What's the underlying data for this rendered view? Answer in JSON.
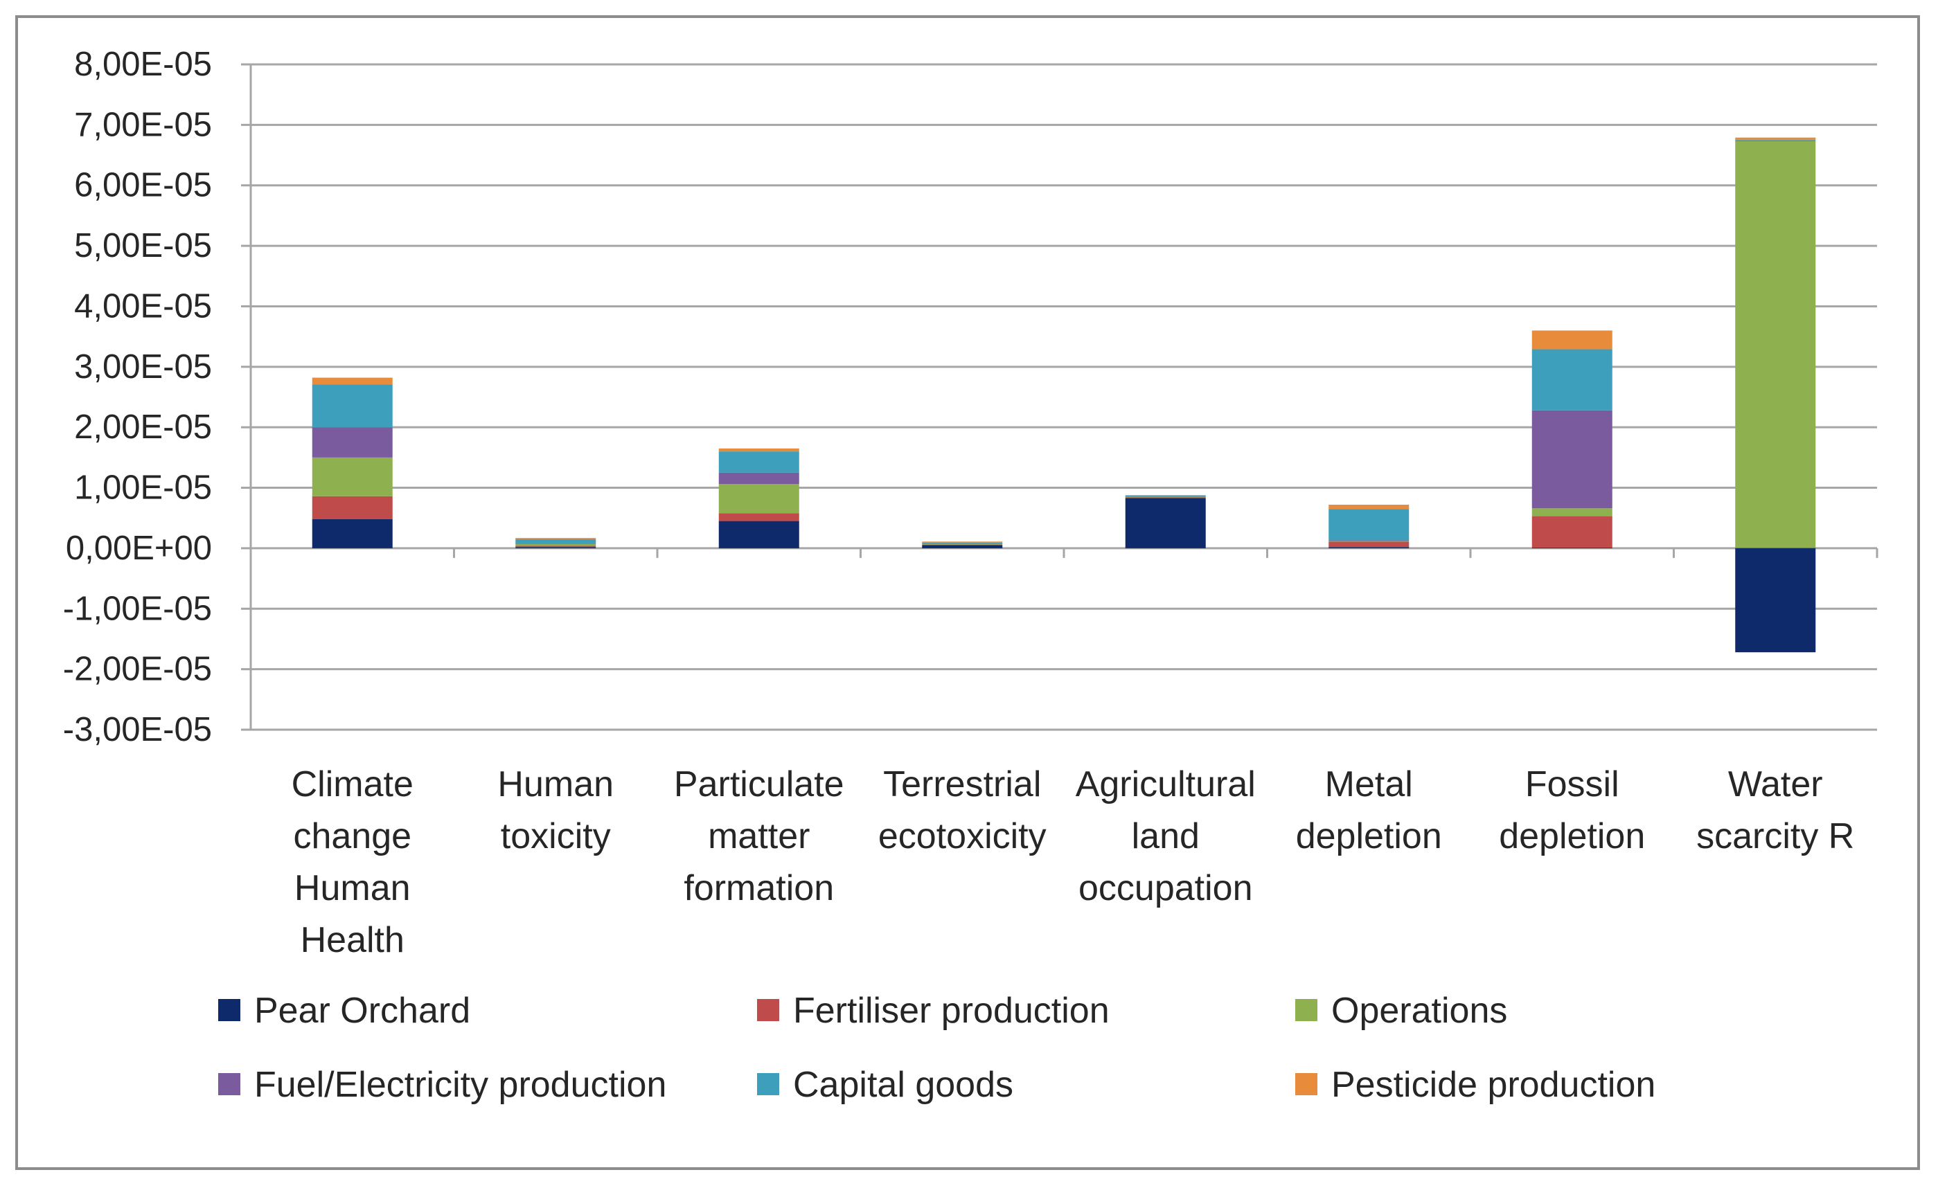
{
  "chart_data": {
    "type": "bar",
    "stacked": true,
    "title": "",
    "xlabel": "",
    "ylabel": "",
    "ylim": [
      -3e-05,
      8e-05
    ],
    "ytick_step": 1e-05,
    "ytick_labels": [
      "8,00E-05",
      "7,00E-05",
      "6,00E-05",
      "5,00E-05",
      "4,00E-05",
      "3,00E-05",
      "2,00E-05",
      "1,00E-05",
      "0,00E+00",
      "-1,00E-05",
      "-2,00E-05",
      "-3,00E-05"
    ],
    "grid": true,
    "legend_position": "bottom",
    "categories": [
      "Climate change Human Health",
      "Human toxicity",
      "Particulate matter formation",
      "Terrestrial ecotoxicity",
      "Agricultural land occupation",
      "Metal depletion",
      "Fossil depletion",
      "Water scarcity R"
    ],
    "category_lines": [
      [
        "Climate",
        "change",
        "Human",
        "Health"
      ],
      [
        "Human",
        "toxicity"
      ],
      [
        "Particulate",
        "matter",
        "formation"
      ],
      [
        "Terrestrial",
        "ecotoxicity"
      ],
      [
        "Agricultural",
        "land",
        "occupation"
      ],
      [
        "Metal",
        "depletion"
      ],
      [
        "Fossil",
        "depletion"
      ],
      [
        "Water",
        "scarcity R"
      ]
    ],
    "series": [
      {
        "name": "Pear Orchard",
        "color": "#0e2a6b",
        "values": [
          4.8e-06,
          2e-07,
          4.5e-06,
          5e-07,
          8.3e-06,
          2e-07,
          1e-07,
          -1.72e-05
        ]
      },
      {
        "name": "Fertiliser production",
        "color": "#bf4b4b",
        "values": [
          3.8e-06,
          2e-07,
          1.3e-06,
          1e-07,
          1e-07,
          9e-07,
          5.2e-06,
          1e-07
        ]
      },
      {
        "name": "Operations",
        "color": "#8fb04f",
        "values": [
          6.4e-06,
          3e-07,
          4.8e-06,
          1e-07,
          1e-07,
          1e-07,
          1.3e-06,
          6.72e-05
        ]
      },
      {
        "name": "Fuel/Electricity production",
        "color": "#7a5c9e",
        "values": [
          5e-06,
          1e-07,
          1.9e-06,
          1e-07,
          1e-07,
          1e-07,
          1.62e-05,
          1e-07
        ]
      },
      {
        "name": "Capital goods",
        "color": "#3e9fbd",
        "values": [
          7.1e-06,
          7e-07,
          3.5e-06,
          1e-07,
          1e-07,
          5.2e-06,
          1.01e-05,
          1e-07
        ]
      },
      {
        "name": "Pesticide production",
        "color": "#e88c3c",
        "values": [
          1.1e-06,
          2e-07,
          5e-07,
          2e-07,
          1e-07,
          7e-07,
          3.1e-06,
          4e-07
        ]
      }
    ]
  }
}
